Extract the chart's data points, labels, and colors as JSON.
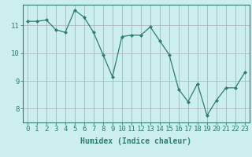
{
  "x": [
    0,
    1,
    2,
    3,
    4,
    5,
    6,
    7,
    8,
    9,
    10,
    11,
    12,
    13,
    14,
    15,
    16,
    17,
    18,
    19,
    20,
    21,
    22,
    23
  ],
  "y": [
    11.15,
    11.15,
    11.2,
    10.85,
    10.75,
    11.55,
    11.3,
    10.75,
    9.95,
    9.15,
    10.6,
    10.65,
    10.65,
    10.95,
    10.45,
    9.95,
    8.7,
    8.25,
    8.9,
    7.75,
    8.3,
    8.75,
    8.75,
    9.3
  ],
  "line_color": "#2e7d6e",
  "marker": "D",
  "marker_size": 2,
  "bg_color": "#cceeee",
  "grid_major_color": "#b0b0b0",
  "grid_minor_color": "#cc9999",
  "xlabel": "Humidex (Indice chaleur)",
  "ylim": [
    7.5,
    11.75
  ],
  "xlim": [
    -0.5,
    23.5
  ],
  "yticks": [
    8,
    9,
    10,
    11
  ],
  "xticks": [
    0,
    1,
    2,
    3,
    4,
    5,
    6,
    7,
    8,
    9,
    10,
    11,
    12,
    13,
    14,
    15,
    16,
    17,
    18,
    19,
    20,
    21,
    22,
    23
  ],
  "xlabel_fontsize": 7,
  "tick_fontsize": 6.5,
  "tick_color": "#2e7d6e",
  "axis_color": "#2e7d6e"
}
